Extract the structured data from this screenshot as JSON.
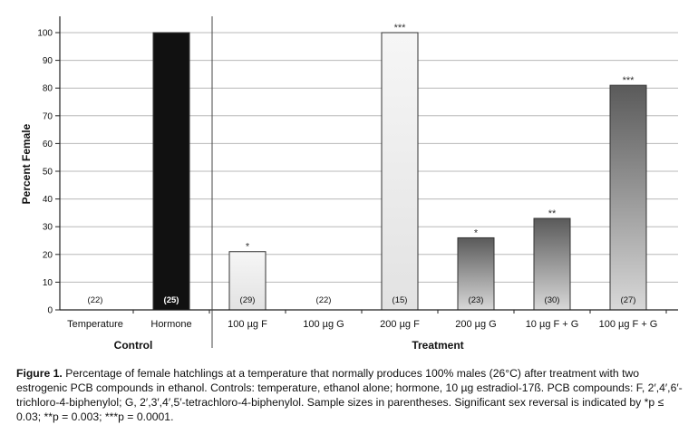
{
  "chart_data": {
    "type": "bar",
    "title": "",
    "ylabel": "Percent Female",
    "ylim": [
      0,
      100
    ],
    "yticks": [
      0,
      10,
      20,
      30,
      40,
      50,
      60,
      70,
      80,
      90,
      100
    ],
    "grid": true,
    "groups": [
      {
        "label": "Control",
        "categories": [
          "Temperature",
          "Hormone"
        ]
      },
      {
        "label": "Treatment",
        "categories": [
          "100 µg F",
          "100 µg G",
          "200 µg F",
          "200 µg G",
          "10 µg F + G",
          "100 µg F + G"
        ]
      }
    ],
    "categories": [
      "Temperature",
      "Hormone",
      "100 µg F",
      "100 µg G",
      "200 µg F",
      "200 µg G",
      "10 µg F + G",
      "100 µg F + G"
    ],
    "values": [
      0,
      100,
      21,
      0,
      100,
      26,
      33,
      81
    ],
    "sample_sizes": [
      "(22)",
      "(25)",
      "(29)",
      "(22)",
      "(15)",
      "(23)",
      "(30)",
      "(27)"
    ],
    "significance": [
      "",
      "",
      "*",
      "",
      "***",
      "*",
      "**",
      "***"
    ],
    "colors": {
      "hormone": "#111111",
      "light_top": "#f6f6f6",
      "light_bottom": "#e2e2e2",
      "mid_top": "#5a5a5a",
      "mid_bottom": "#d8d8d8",
      "plot_bg": "#ffffff",
      "grid": "#b8b8b8"
    }
  },
  "caption": {
    "figure_label": "Figure 1.",
    "text": "Percentage of female hatchlings at a temperature that normally produces 100% males (26°C) after treatment with two estrogenic PCB compounds in ethanol. Controls: temperature, ethanol alone; hormone, 10 µg estradiol-17ß. PCB compounds: F, 2′,4′,6′-trichloro-4-biphenylol; G, 2′,3′,4′,5′-tetrachloro-4-biphenylol. Sample sizes in parentheses. Significant sex reversal is indicated by *p ≤ 0.03; **p = 0.003; ***p = 0.0001."
  }
}
